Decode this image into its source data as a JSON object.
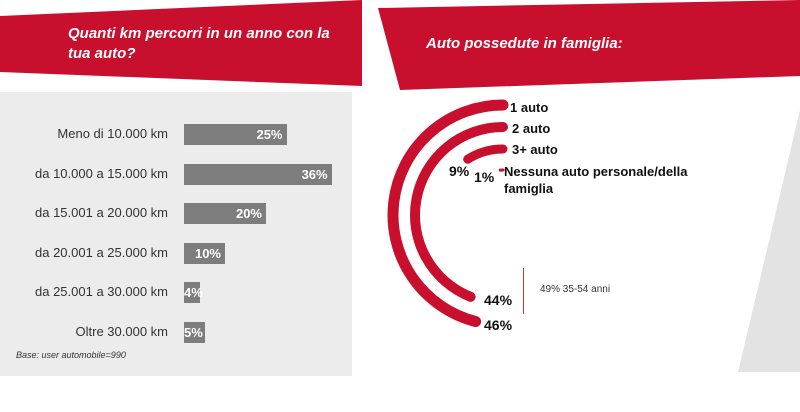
{
  "left_panel": {
    "title": "Quanti km percorri in un anno con la tua auto?",
    "base_note": "Base: user automobile=990"
  },
  "right_panel": {
    "title": "Auto possedute in famiglia:",
    "annotation": "49% 35-54 anni"
  },
  "colors": {
    "brand_red": "#c8102e",
    "bar_gray": "#7d7d7d",
    "panel_gray": "#ececec"
  },
  "chart_data": [
    {
      "type": "bar",
      "orientation": "horizontal",
      "title": "Quanti km percorri in un anno con la tua auto?",
      "categories": [
        "Meno di 10.000 km",
        "da 10.000 a 15.000 km",
        "da 15.001 a 20.000 km",
        "da 20.001 a 25.000 km",
        "da 25.001 a 30.000 km",
        "Oltre 30.000 km"
      ],
      "values": [
        25,
        36,
        20,
        10,
        4,
        5
      ],
      "value_labels": [
        "25%",
        "36%",
        "20%",
        "10%",
        "4%",
        "5%"
      ],
      "xlim": [
        0,
        40
      ],
      "grid": false
    },
    {
      "type": "pie",
      "title": "Auto possedute in famiglia:",
      "style": "concentric half-rings",
      "categories": [
        "1 auto",
        "2 auto",
        "3+ auto",
        "Nessuna auto personale/della famiglia"
      ],
      "values": [
        46,
        44,
        9,
        1
      ],
      "value_labels": [
        "46%",
        "44%",
        "9%",
        "1%"
      ],
      "legend_labels": [
        "1 auto",
        "2 auto",
        "3+ auto",
        "Nessuna auto personale/della famiglia"
      ]
    }
  ]
}
